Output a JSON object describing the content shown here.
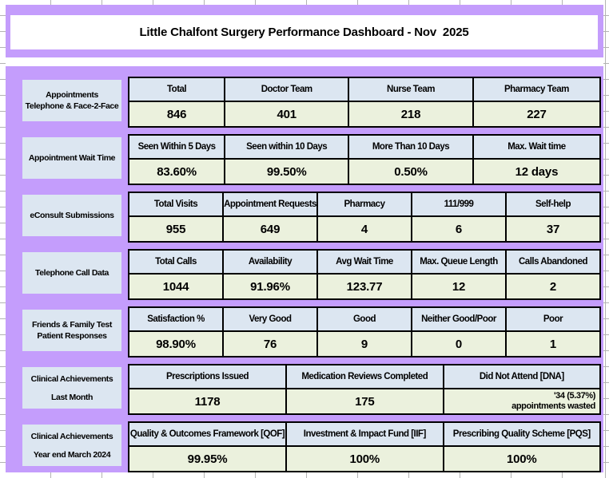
{
  "title": "Little Chalfont Surgery Performance Dashboard - Nov  2025",
  "colors": {
    "canvas_purple": "#c49dfc",
    "header_blue": "#dce6f1",
    "value_green": "#ebf1dd",
    "table_border": "#000000",
    "gridline_gray": "#b3b3b3",
    "text": "#000000"
  },
  "rows": [
    {
      "label_lines": [
        "Appointments",
        "Telephone & Face-2-Face"
      ],
      "label_spread": false,
      "widths": [
        "20.3%",
        "26.3%",
        "26.4%",
        "27%"
      ],
      "columns": [
        {
          "header": "Total",
          "value": "846"
        },
        {
          "header": "Doctor Team",
          "value": "401"
        },
        {
          "header": "Nurse Team",
          "value": "218"
        },
        {
          "header": "Pharmacy Team",
          "value": "227"
        }
      ]
    },
    {
      "label_lines": [
        "Appointment Wait Time"
      ],
      "label_spread": false,
      "widths": [
        "20.3%",
        "26.3%",
        "26.4%",
        "27%"
      ],
      "columns": [
        {
          "header": "Seen Within 5 Days",
          "value": "83.60%"
        },
        {
          "header": "Seen within 10 Days",
          "value": "99.50%"
        },
        {
          "header": "More Than 10 Days",
          "value": "0.50%"
        },
        {
          "header": "Max. Wait time",
          "value": "12 days"
        }
      ]
    },
    {
      "label_lines": [
        "eConsult Submissions"
      ],
      "label_spread": false,
      "widths": [
        "20%",
        "20%",
        "20%",
        "20%",
        "20%"
      ],
      "columns": [
        {
          "header": "Total Visits",
          "value": "955"
        },
        {
          "header": "Appointment Requests",
          "value": "649"
        },
        {
          "header": "Pharmacy",
          "value": "4"
        },
        {
          "header": "111/999",
          "value": "6"
        },
        {
          "header": "Self-help",
          "value": "37"
        }
      ]
    },
    {
      "label_lines": [
        "Telephone Call Data"
      ],
      "label_spread": false,
      "widths": [
        "20%",
        "20%",
        "20%",
        "20%",
        "20%"
      ],
      "columns": [
        {
          "header": "Total Calls",
          "value": "1044"
        },
        {
          "header": "Availability",
          "value": "91.96%"
        },
        {
          "header": "Avg Wait Time",
          "value": "123.77"
        },
        {
          "header": "Max. Queue Length",
          "value": "12"
        },
        {
          "header": "Calls Abandoned",
          "value": "2"
        }
      ]
    },
    {
      "label_lines": [
        "Friends & Family Test",
        "Patient Responses"
      ],
      "label_spread": false,
      "widths": [
        "20%",
        "20%",
        "20%",
        "20%",
        "20%"
      ],
      "columns": [
        {
          "header": "Satisfaction %",
          "value": "98.90%"
        },
        {
          "header": "Very Good",
          "value": "76"
        },
        {
          "header": "Good",
          "value": "9"
        },
        {
          "header": "Neither Good/Poor",
          "value": "0"
        },
        {
          "header": "Poor",
          "value": "1"
        }
      ]
    },
    {
      "label_lines": [
        "Clinical Achievements",
        "Last Month"
      ],
      "label_spread": true,
      "widths": [
        "33.4%",
        "33.3%",
        "33.3%"
      ],
      "columns": [
        {
          "header": "Prescriptions Issued",
          "value": "1178"
        },
        {
          "header": "Medication Reviews Completed",
          "value": "175"
        },
        {
          "header": "Did Not Attend [DNA]",
          "value": "'34 (5.37%)\nappointments wasted",
          "small": true,
          "align": "right"
        }
      ]
    },
    {
      "label_lines": [
        "Clinical Achievements",
        "Year end March 2024"
      ],
      "label_spread": true,
      "widths": [
        "33.4%",
        "33.3%",
        "33.3%"
      ],
      "columns": [
        {
          "header": "Quality & Outcomes Framework [QOF]",
          "value": "99.95%"
        },
        {
          "header": "Investment & Impact Fund [IIF]",
          "value": "100%"
        },
        {
          "header": "Prescribing Quality Scheme [PQS]",
          "value": "100%"
        }
      ]
    }
  ]
}
